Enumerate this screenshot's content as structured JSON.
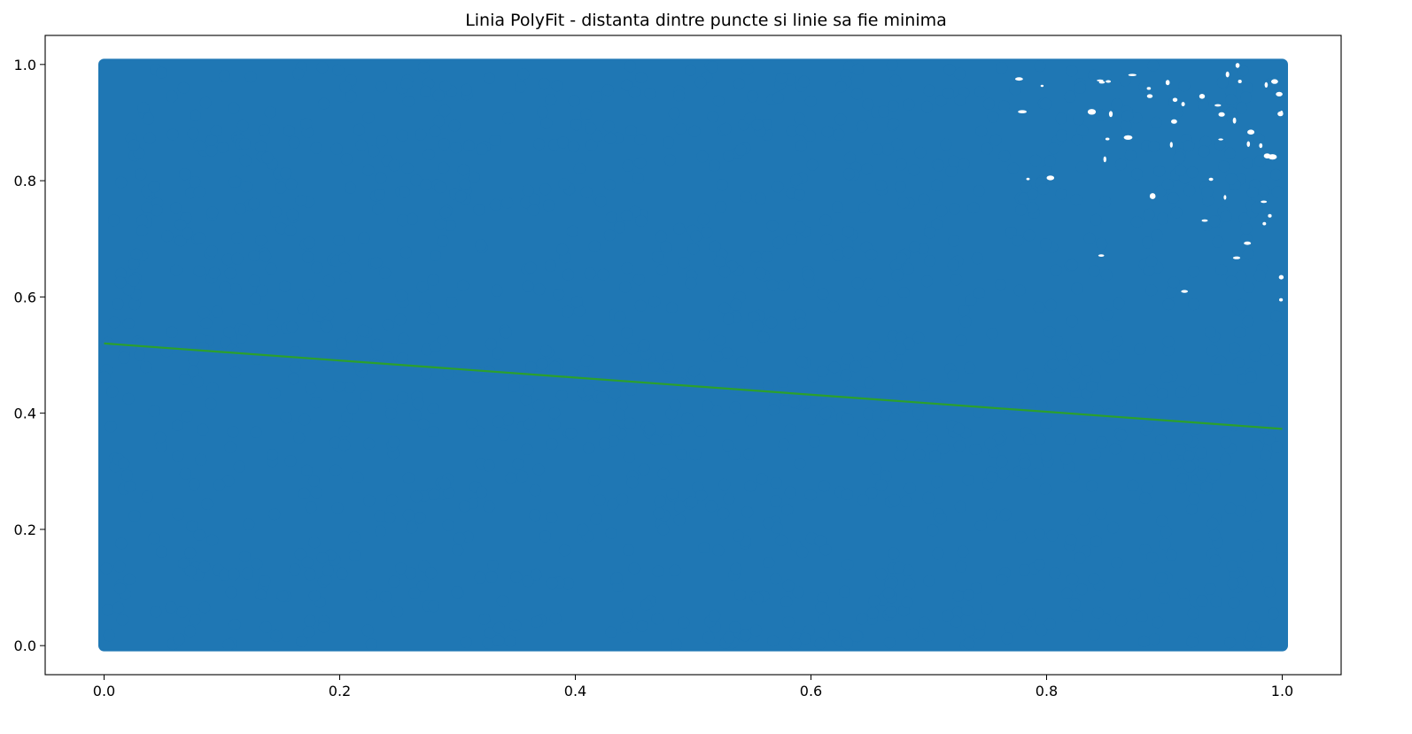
{
  "chart_data": {
    "type": "scatter",
    "title": "Linia PolyFit - distanta dintre puncte si linie sa fie minima",
    "xlabel": "",
    "ylabel": "",
    "xlim": [
      -0.05,
      1.05
    ],
    "ylim": [
      -0.05,
      1.05
    ],
    "x_ticks": [
      "0.0",
      "0.2",
      "0.4",
      "0.6",
      "0.8",
      "1.0"
    ],
    "y_ticks": [
      "0.0",
      "0.2",
      "0.4",
      "0.6",
      "0.8",
      "1.0"
    ],
    "grid": false,
    "legend": "none",
    "colors": {
      "points": "#1f77b4",
      "fit_line": "#2ca02c"
    },
    "scatter": {
      "description_of_distribution": "dense uniform cloud of points with x in [0,1] and y in [0,1]; density thins toward x=1 near the top",
      "x_range": [
        0.0,
        1.0
      ],
      "y_range": [
        0.0,
        1.0
      ]
    },
    "fit_line": {
      "type": "line",
      "x": [
        0.0,
        1.0
      ],
      "y": [
        0.52,
        0.373
      ]
    }
  }
}
